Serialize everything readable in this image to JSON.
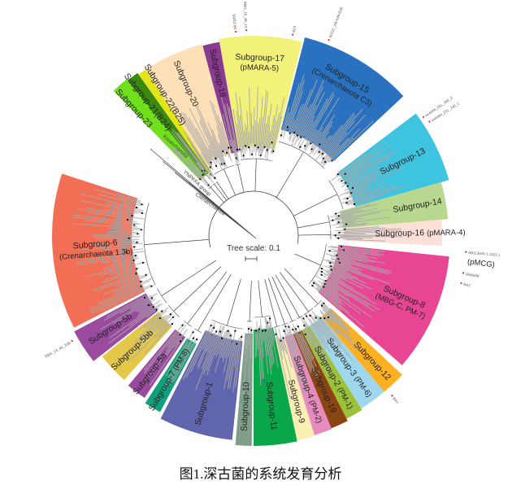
{
  "figure": {
    "caption": "图1.深古菌的系统发育分析",
    "tree_scale_label": "Tree scale: 0.1",
    "outgroups": [
      "Korarchaeota",
      "YNPFFA group",
      "Crenarchaeota"
    ],
    "subgroups": [
      {
        "id": "17",
        "label": "Subgroup-17",
        "sub": "(pMARA-5)",
        "color": "#f2f27a"
      },
      {
        "id": "15",
        "label": "Subgroup-15",
        "sub": "(Crenarchaeota C3)",
        "color": "#2a72bf"
      },
      {
        "id": "13",
        "label": "Subgroup-13",
        "sub": "",
        "color": "#3ec3e0"
      },
      {
        "id": "14",
        "label": "Subgroup-14",
        "sub": "",
        "color": "#b8d88f"
      },
      {
        "id": "16",
        "label": "Subgroup-16",
        "sub": "(pMARA-4)",
        "color": "#fde0d8"
      },
      {
        "id": "8",
        "label": "Subgroup-8",
        "sub": "(MBG-C, PM-7)",
        "color": "#e84595"
      },
      {
        "id": "12",
        "label": "Subgroup-12",
        "sub": "",
        "color": "#fdb022"
      },
      {
        "id": "3",
        "label": "Subgroup-3",
        "sub": "(PM-6)",
        "color": "#9fd8ee"
      },
      {
        "id": "2",
        "label": "Subgroup-2",
        "sub": "(PM-1)",
        "color": "#9cc23a"
      },
      {
        "id": "19",
        "label": "Subgroup-19",
        "sub": "",
        "color": "#8b4513"
      },
      {
        "id": "4",
        "label": "Subgroup-4",
        "sub": "(PM-2)",
        "color": "#e58bbd"
      },
      {
        "id": "9",
        "label": "Subgroup-9",
        "sub": "",
        "color": "#fcefb4"
      },
      {
        "id": "11",
        "label": "Subgroup-11",
        "sub": "",
        "color": "#0aa64a"
      },
      {
        "id": "10",
        "label": "Subgroup-10",
        "sub": "",
        "color": "#7f9f8a"
      },
      {
        "id": "1",
        "label": "Subgroup-1",
        "sub": "",
        "color": "#6165ad"
      },
      {
        "id": "7",
        "label": "Subgroup-7",
        "sub": "(PM-8)",
        "color": "#11a07c"
      },
      {
        "id": "5a",
        "label": "Subgroup-5a",
        "sub": "",
        "color": "#9a4b9f"
      },
      {
        "id": "5bb",
        "label": "Subgroup-5bb",
        "sub": "",
        "color": "#e3c84a"
      },
      {
        "id": "5b",
        "label": "Subgroup-5b",
        "sub": "",
        "color": "#9a4b9f"
      },
      {
        "id": "6",
        "label": "Subgroup-6",
        "sub": "(Crenarchaeota 1.3b)",
        "color": "#f26e55"
      },
      {
        "id": "23",
        "label": "Subgroup-23",
        "sub": "",
        "color": "#6fe01a"
      },
      {
        "id": "21",
        "label": "Subgroup-21(B24)",
        "sub": "",
        "color": "#3a8a10"
      },
      {
        "id": "22",
        "label": "Subgroup-22(B25)",
        "sub": "",
        "color": "#e4e41a"
      },
      {
        "id": "20",
        "label": "Subgroup-20",
        "sub": "",
        "color": "#fde0b8"
      },
      {
        "id": "18",
        "label": "Subgroup-18",
        "sub": "",
        "color": "#8a3a90"
      }
    ],
    "leaf_labels": [
      "SMTZ-80",
      "RBG_16_48_13",
      "B23",
      "SCGC_AB-539-E09",
      "ex4484_231_160_2",
      "ex4484_231_160_1",
      "AB113635.1.1422.1",
      "(pMCG)",
      "UBA589",
      "BA2",
      "BA1",
      "RBG_13_46_16B"
    ],
    "marker_color": "#e8202a",
    "branch_color": "#444444",
    "leaf_branch_color": "#aaaaaa"
  }
}
